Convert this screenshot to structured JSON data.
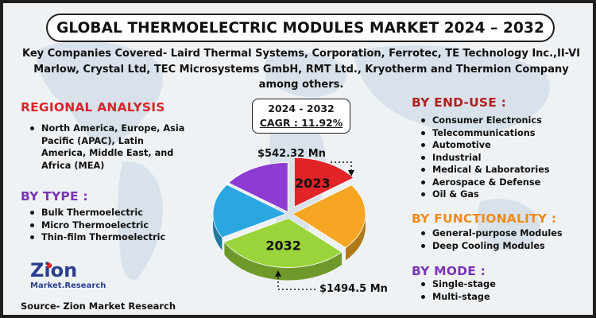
{
  "title": "GLOBAL THERMOELECTRIC MODULES MARKET 2024 – 2032",
  "companies": "Key Companies Covered- Laird Thermal Systems, Corporation, Ferrotec, TE Technology Inc.,II-VI Marlow, Crystal Ltd, TEC Microsystems GmbH, RMT Ltd., Kryotherm and Thermion Company among others.",
  "regional": {
    "heading": "REGIONAL ANALYSIS",
    "items": [
      "North America, Europe, Asia Pacific (APAC), Latin America, Middle East, and Africa (MEA)"
    ]
  },
  "by_type": {
    "heading": "BY TYPE :",
    "items": [
      "Bulk Thermoelectric",
      "Micro Thermoelectric",
      "Thin-film Thermoelectric"
    ]
  },
  "by_end_use": {
    "heading": "BY END-USE :",
    "items": [
      "Consumer Electronics",
      "Telecommunications",
      "Automotive",
      "Industrial",
      "Medical & Laboratories",
      "Aerospace & Defense",
      "Oil & Gas"
    ]
  },
  "by_functionality": {
    "heading": "BY FUNCTIONALITY :",
    "items": [
      "General-purpose Modules",
      "Deep Cooling Modules"
    ]
  },
  "by_mode": {
    "heading": "BY MODE :",
    "items": [
      "Single-stage",
      "Multi-stage"
    ]
  },
  "cagr": {
    "period": "2024 - 2032",
    "value": "CAGR : 11.92%"
  },
  "logo": {
    "name": "Zion",
    "sub": "Market.Research"
  },
  "source": "Source- Zion Market Research",
  "colors": {
    "red": "#e02427",
    "orange": "#f6a623",
    "green": "#9ad43a",
    "blue": "#2aa7e0",
    "purple": "#8e3bd1",
    "section_red": "#d8262b",
    "section_purple": "#7a34b8",
    "section_orange": "#f08a1c"
  },
  "chart_data": {
    "type": "pie",
    "title": "",
    "slices": [
      {
        "label": "2023",
        "value": 15,
        "color": "#e02427"
      },
      {
        "label": "",
        "value": 22,
        "color": "#f6a623"
      },
      {
        "label": "2032",
        "value": 30,
        "color": "#9ad43a"
      },
      {
        "label": "",
        "value": 18,
        "color": "#2aa7e0"
      },
      {
        "label": "",
        "value": 15,
        "color": "#8e3bd1"
      }
    ],
    "annotations": [
      {
        "year": "2023",
        "value": "$542.32 Mn"
      },
      {
        "year": "2032",
        "value": "$1494.5 Mn"
      }
    ]
  }
}
